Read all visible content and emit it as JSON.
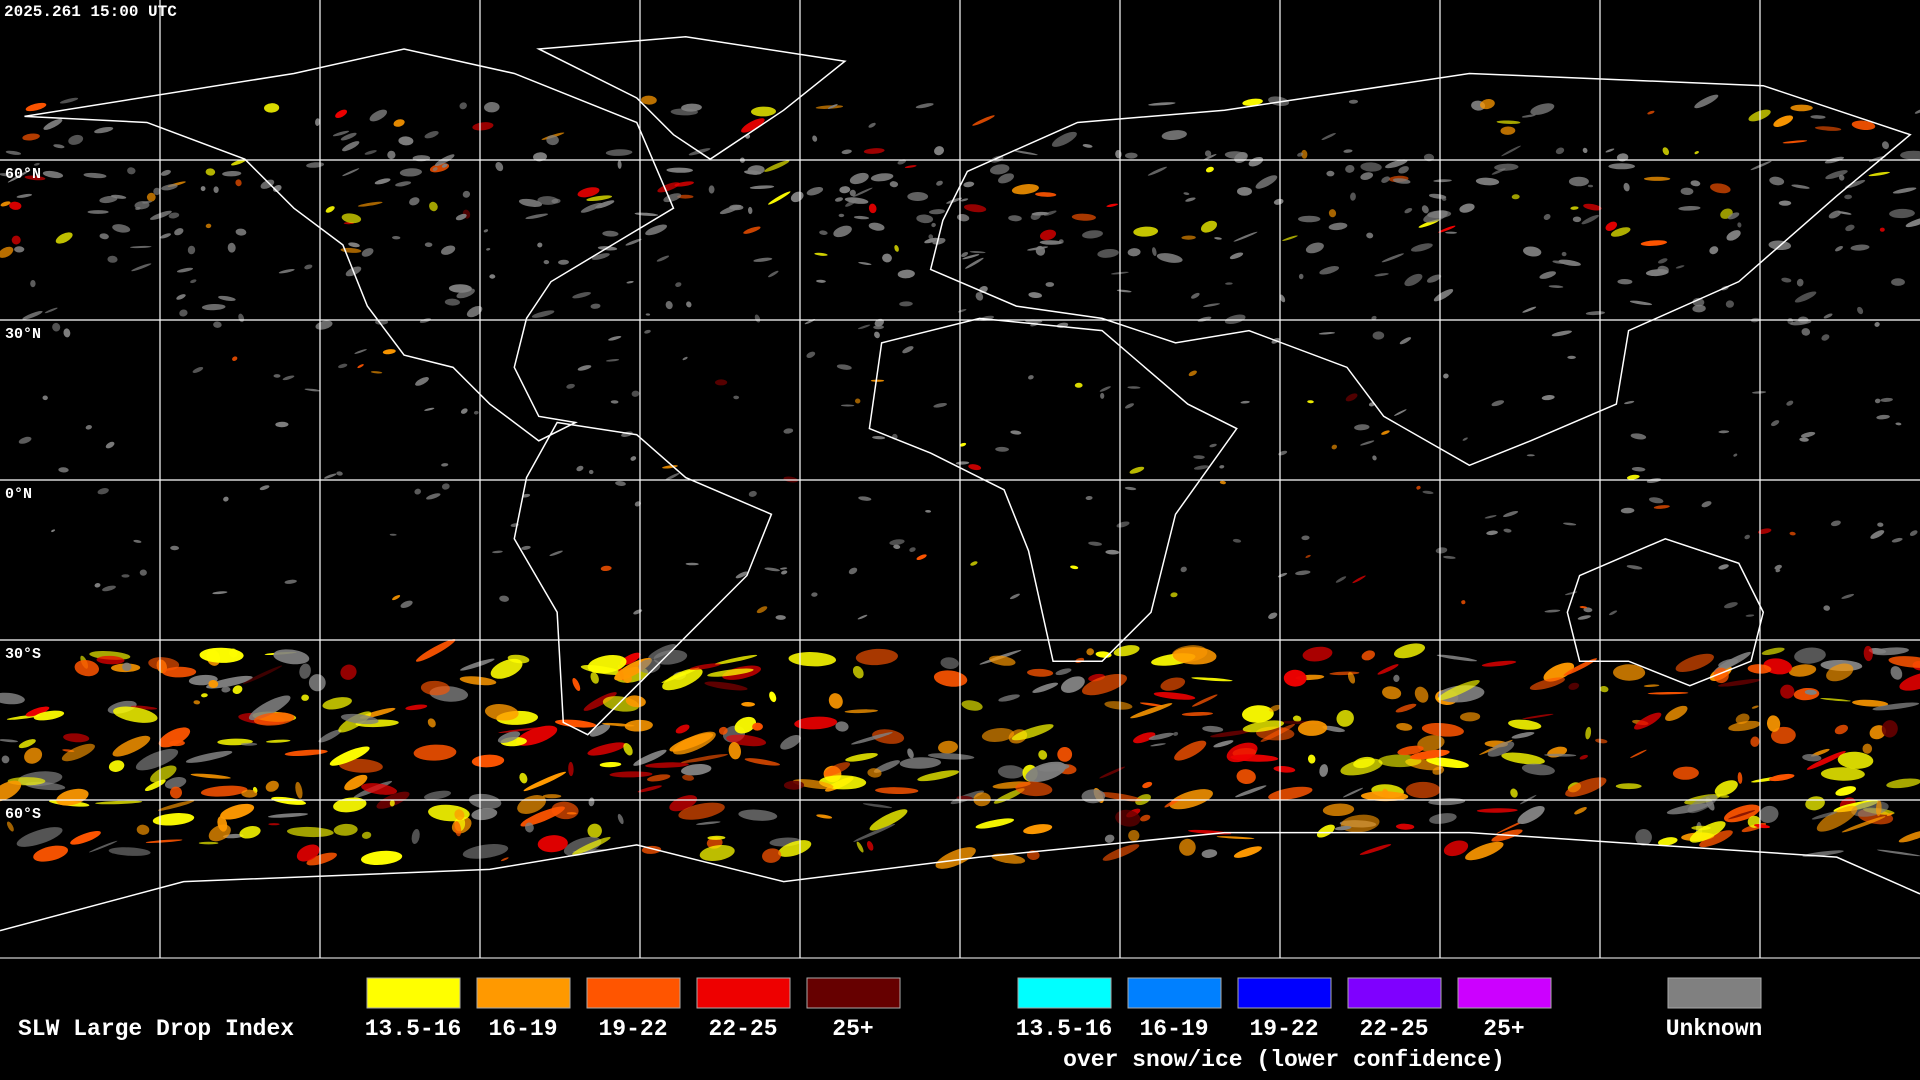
{
  "header": {
    "timestamp": "2025.261 15:00 UTC"
  },
  "grid": {
    "lat_labels": [
      "60°N",
      "30°N",
      "0°N",
      "30°S",
      "60°S"
    ]
  },
  "legend": {
    "title": "SLW Large Drop Index",
    "groups": [
      {
        "items": [
          {
            "label": "13.5-16",
            "color": "#ffff00"
          },
          {
            "label": "16-19",
            "color": "#ff9900"
          },
          {
            "label": "19-22",
            "color": "#ff5500"
          },
          {
            "label": "22-25",
            "color": "#ee0000"
          },
          {
            "label": "25+",
            "color": "#660000"
          }
        ]
      },
      {
        "caption": "over snow/ice (lower confidence)",
        "items": [
          {
            "label": "13.5-16",
            "color": "#00ffff"
          },
          {
            "label": "16-19",
            "color": "#0080ff"
          },
          {
            "label": "19-22",
            "color": "#0000ff"
          },
          {
            "label": "22-25",
            "color": "#7f00ff"
          },
          {
            "label": "25+",
            "color": "#cc00ff"
          }
        ]
      }
    ],
    "unknown": {
      "label": "Unknown",
      "color": "#808080"
    }
  }
}
